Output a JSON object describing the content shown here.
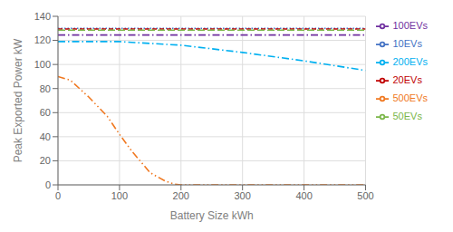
{
  "chart_data": {
    "type": "line",
    "xlabel": "Battery Size kWh",
    "ylabel": "Peak Exported Power kW",
    "xlim": [
      0,
      500
    ],
    "ylim": [
      0,
      140
    ],
    "xticks": [
      0,
      100,
      200,
      300,
      400,
      500
    ],
    "yticks": [
      0,
      20,
      40,
      60,
      80,
      100,
      120,
      140
    ],
    "grid": true,
    "legend": "right",
    "series": [
      {
        "name": "10EVs",
        "color": "#4472C4",
        "line_style": "dotted",
        "x": [
          0,
          500
        ],
        "values": [
          130,
          130
        ]
      },
      {
        "name": "20EVs",
        "color": "#C00000",
        "line_style": "dashed",
        "x": [
          0,
          500
        ],
        "values": [
          129.5,
          129.5
        ]
      },
      {
        "name": "50EVs",
        "color": "#7AB648",
        "line_style": "longdash",
        "x": [
          0,
          500
        ],
        "values": [
          128.5,
          128.5
        ]
      },
      {
        "name": "100EVs",
        "color": "#7030A0",
        "line_style": "dashdot",
        "x": [
          0,
          500
        ],
        "values": [
          124.5,
          124.5
        ]
      },
      {
        "name": "200EVs",
        "color": "#00B0F0",
        "line_style": "dashdot",
        "x": [
          0,
          50,
          100,
          150,
          200,
          250,
          300,
          350,
          400,
          450,
          500
        ],
        "values": [
          119,
          119,
          119,
          117.5,
          116,
          113,
          110,
          106.5,
          103,
          99,
          95
        ]
      },
      {
        "name": "500EVs",
        "color": "#F07820",
        "line_style": "dashdotdot",
        "x": [
          0,
          20,
          50,
          80,
          100,
          120,
          150,
          175,
          190,
          200,
          250,
          300,
          400,
          500
        ],
        "values": [
          90,
          87,
          73,
          57,
          42,
          28,
          10,
          3,
          0.5,
          0,
          0,
          0,
          0,
          0
        ]
      }
    ]
  }
}
